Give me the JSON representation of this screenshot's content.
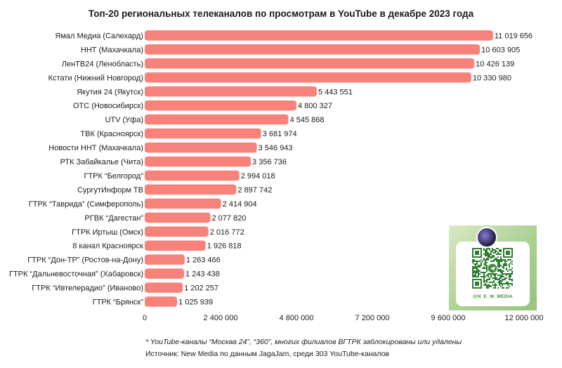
{
  "chart_data": {
    "type": "bar",
    "orientation": "horizontal",
    "title": "Топ-20 региональных телеканалов по просмотрам в YouTube в декабре 2023 года",
    "categories": [
      "Ямал Медиа (Салехард)",
      "ННТ (Махачкала)",
      "ЛенТВ24 (Ленобласть)",
      "Кстати (Нижний Новгород)",
      "Якутия 24 (Якутск)",
      "ОТС (Новосибирск)",
      "UTV (Уфа)",
      "ТВК (Красноярск)",
      "Новости ННТ (Махачкала)",
      "РТК Забайкалье (Чита)",
      "ГТРК “Белгород”",
      "СургутИнформ ТВ",
      "ГТРК “Таврида” (Симферополь)",
      "РГВК “Дагестан”",
      "ГТРК Иртыш (Омск)",
      "8 канал Красноярск",
      "ГТРК “Дон-ТР” (Ростов-на-Дону)",
      "ГТРК “Дальневосточная” (Хабаровск)",
      "ГТРК “Ивтелерадио” (Иваново)",
      "ГТРК “Брянск”"
    ],
    "values": [
      11019656,
      10603905,
      10426139,
      10330980,
      5443551,
      4800327,
      4545868,
      3681974,
      3546943,
      3356736,
      2994018,
      2897742,
      2414904,
      2077820,
      2016772,
      1926818,
      1263466,
      1243438,
      1202257,
      1025939
    ],
    "value_labels": [
      "11 019 656",
      "10 603 905",
      "10 426 139",
      "10 330 980",
      "5 443 551",
      "4 800 327",
      "4 545 868",
      "3 681 974",
      "3 546 943",
      "3 356 736",
      "2 994 018",
      "2 897 742",
      "2 414 904",
      "2 077 820",
      "2 016 772",
      "1 926 818",
      "1 263 466",
      "1 243 438",
      "1 202 257",
      "1 025 939"
    ],
    "xlim": [
      0,
      12000000
    ],
    "x_ticks": [
      0,
      2400000,
      4800000,
      7200000,
      9600000,
      12000000
    ],
    "x_tick_labels": [
      "0",
      "2 400 000",
      "4 800 000",
      "7 200 000",
      "9 600 000",
      "12 000 000"
    ],
    "grid": false,
    "bar_color": "#f7817b"
  },
  "footnote": "* YouTube-каналы “Москва 24”, “360”, многих филиалов ВГТРК заблокированы или удалены",
  "source": "Источник: New Media по данным JagaJam, среди 303 YouTube-каналов",
  "qr_card": {
    "handle": "@N_E_W_MEDIA",
    "icon": "qr-code-icon"
  }
}
